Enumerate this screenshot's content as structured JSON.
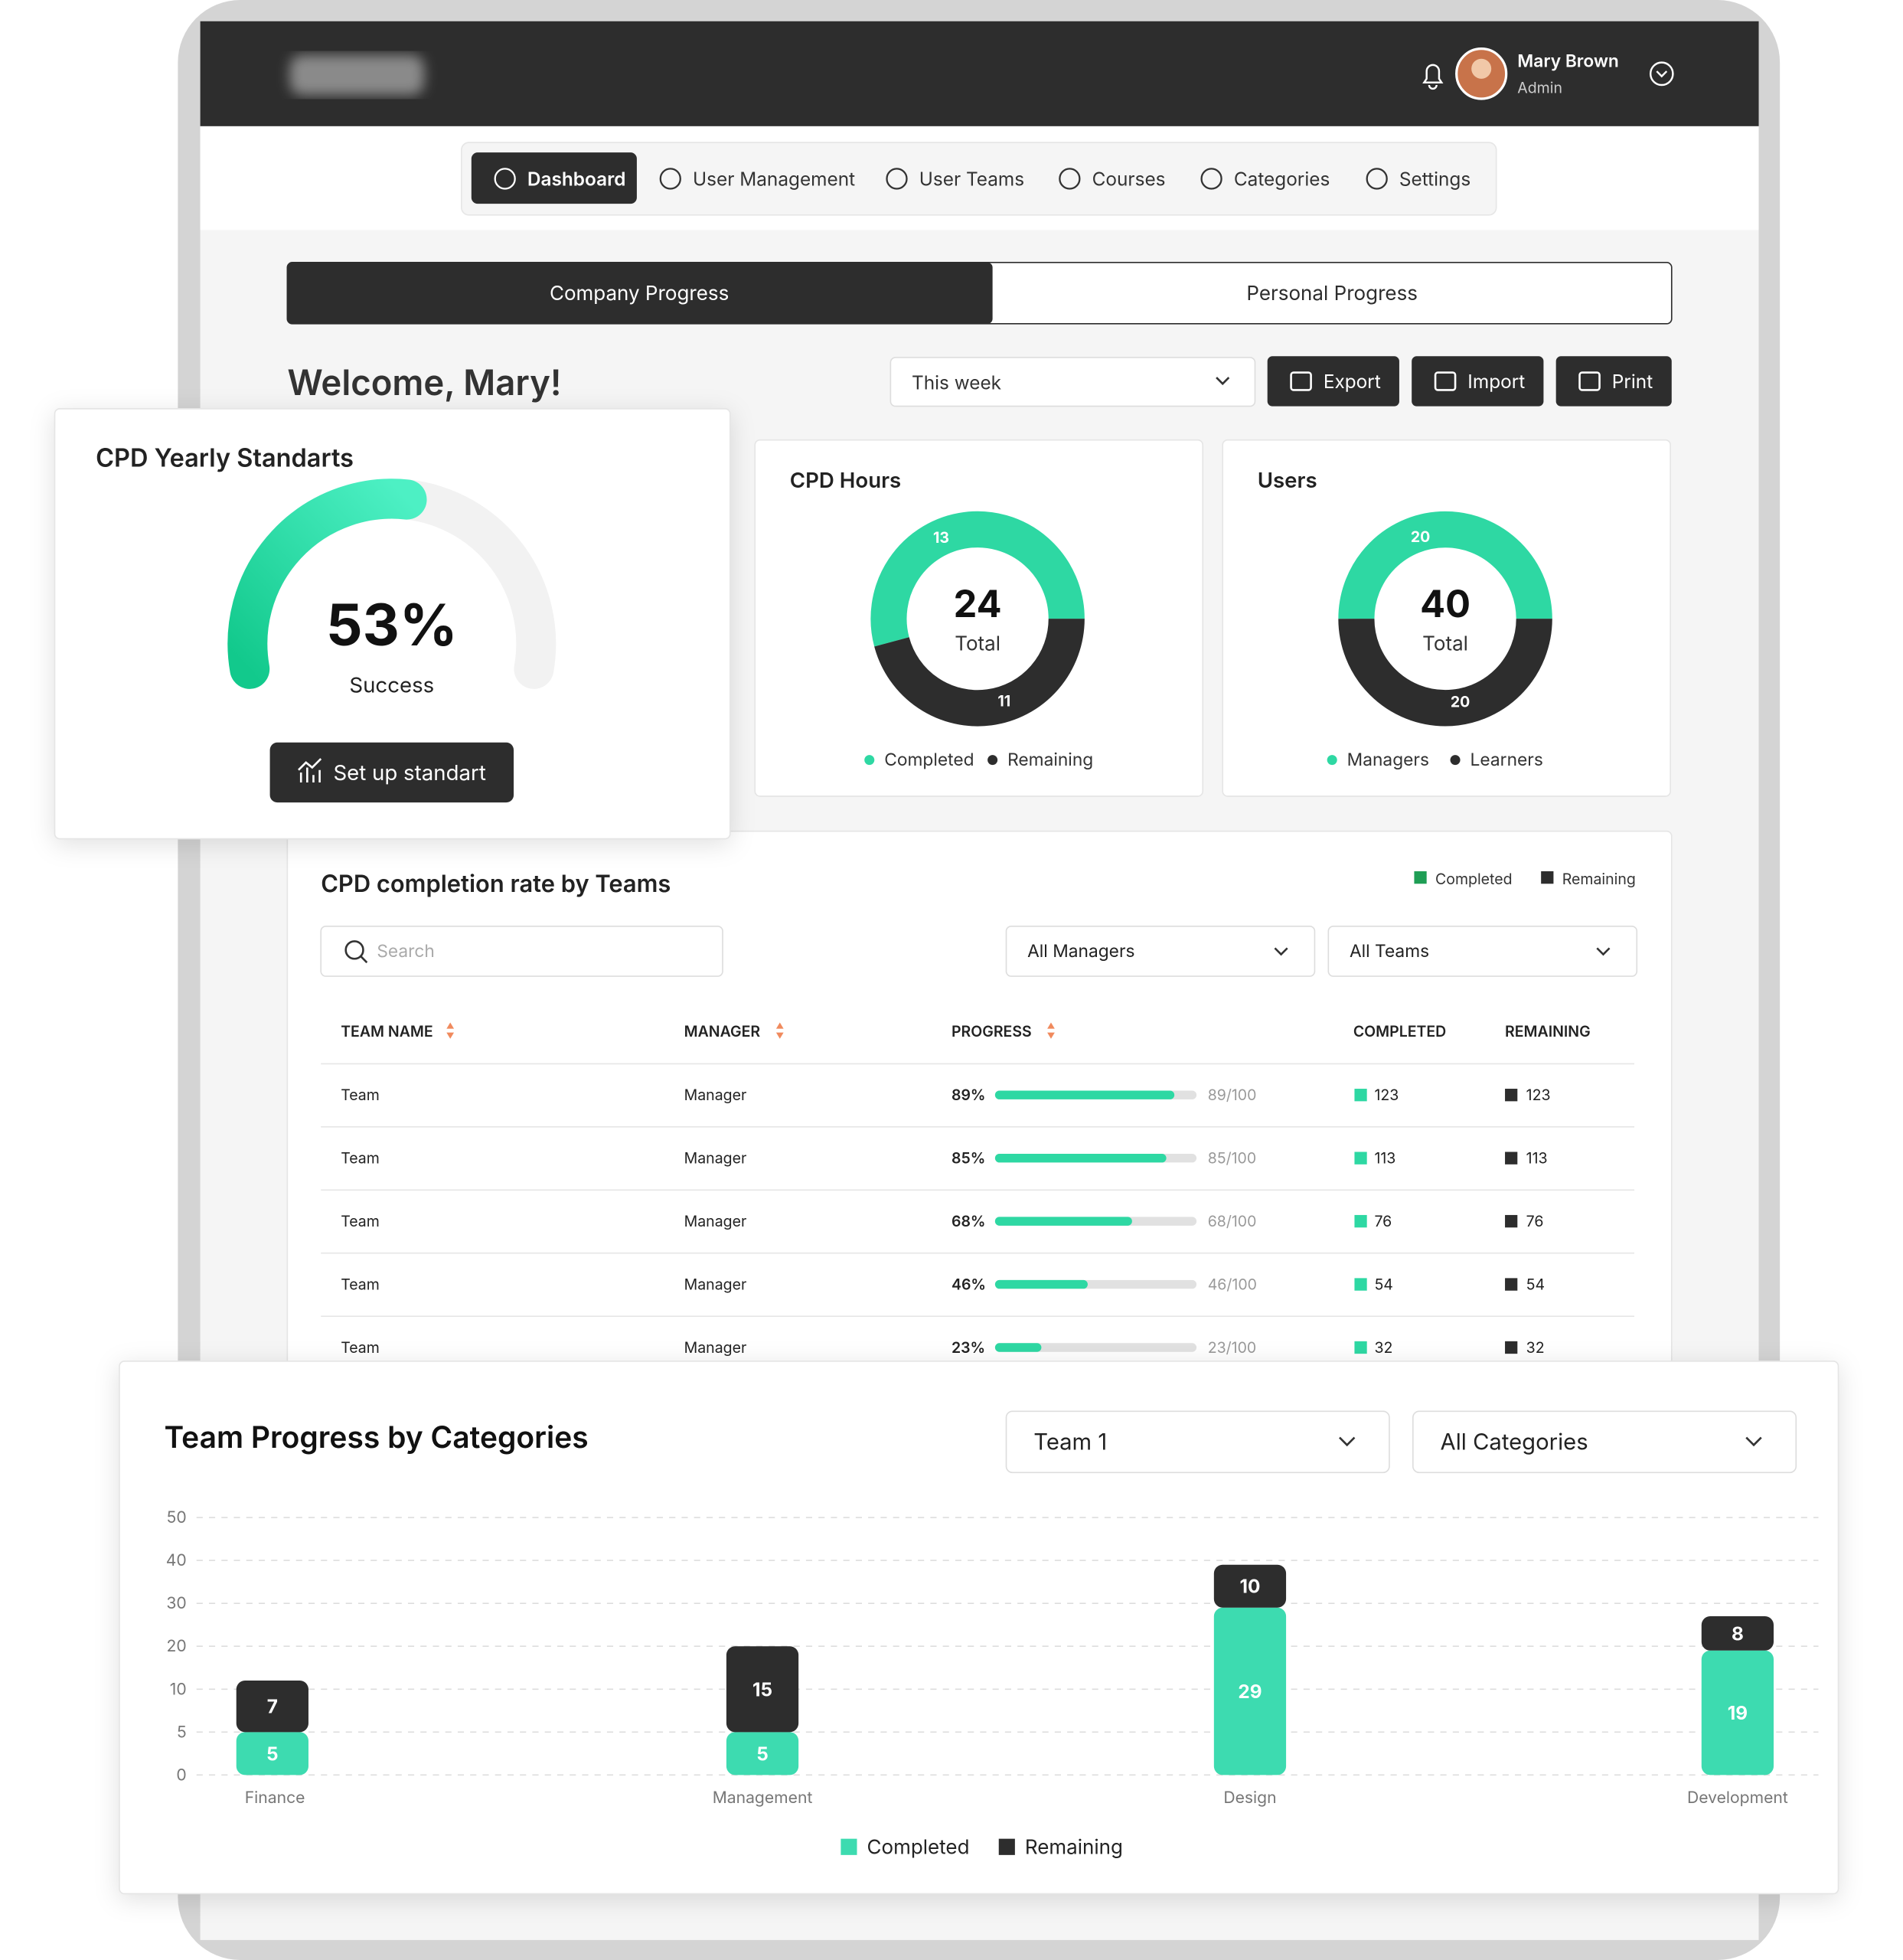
{
  "header": {
    "user_name": "Mary Brown",
    "user_role": "Admin"
  },
  "nav": [
    "Dashboard",
    "User Management",
    "User Teams",
    "Courses",
    "Categories",
    "Settings"
  ],
  "tabs": [
    "Company Progress",
    "Personal Progress"
  ],
  "welcome": "Welcome, Mary!",
  "period": "This week",
  "actions": [
    "Export",
    "Import",
    "Print"
  ],
  "cpd_standards": {
    "title": "CPD Yearly Standarts",
    "value": 53,
    "value_label": "53%",
    "lim": [
      0,
      100
    ],
    "caption": "Success",
    "button": "Set up standart",
    "color": "#2ed8a3"
  },
  "donuts": [
    {
      "title": "CPD Hours",
      "total": 24,
      "total_caption": "Total",
      "series": [
        {
          "name": "Completed",
          "color": "#2ed8a3",
          "value": 13
        },
        {
          "name": "Remaining",
          "color": "#2d2d2d",
          "value": 11
        }
      ]
    },
    {
      "title": "Users",
      "total": 40,
      "total_caption": "Total",
      "series": [
        {
          "name": "Managers",
          "color": "#2ed8a3",
          "value": 20
        },
        {
          "name": "Learners",
          "color": "#2d2d2d",
          "value": 20
        }
      ]
    }
  ],
  "table": {
    "title": "CPD completion rate by Teams",
    "legend": [
      {
        "name": "Completed",
        "color": "#1f9e55"
      },
      {
        "name": "Remaining",
        "color": "#2d2d2d"
      }
    ],
    "search_placeholder": "Search",
    "filters": [
      "All Managers",
      "All Teams"
    ],
    "columns": [
      "TEAM NAME",
      "MANAGER",
      "PROGRESS",
      "COMPLETED",
      "REMAINING"
    ],
    "progress_lim": [
      0,
      100
    ],
    "rows": [
      {
        "team": "Team",
        "manager": "Manager",
        "progress": 89,
        "progress_label": "89%",
        "progress_of": "89/100",
        "completed": 123,
        "remaining": 123
      },
      {
        "team": "Team",
        "manager": "Manager",
        "progress": 85,
        "progress_label": "85%",
        "progress_of": "85/100",
        "completed": 113,
        "remaining": 113
      },
      {
        "team": "Team",
        "manager": "Manager",
        "progress": 68,
        "progress_label": "68%",
        "progress_of": "68/100",
        "completed": 76,
        "remaining": 76
      },
      {
        "team": "Team",
        "manager": "Manager",
        "progress": 46,
        "progress_label": "46%",
        "progress_of": "46/100",
        "completed": 54,
        "remaining": 54
      },
      {
        "team": "Team",
        "manager": "Manager",
        "progress": 23,
        "progress_label": "23%",
        "progress_of": "23/100",
        "completed": 32,
        "remaining": 32
      }
    ]
  },
  "chart_data": {
    "type": "bar",
    "stacked": true,
    "title": "Team Progress by Categories",
    "filters": [
      "Team 1",
      "All Categories"
    ],
    "categories": [
      "Finance",
      "Management",
      "Design",
      "Development"
    ],
    "series": [
      {
        "name": "Completed",
        "color": "#3ddbb0",
        "values": [
          5,
          5,
          29,
          19
        ]
      },
      {
        "name": "Remaining",
        "color": "#2d2d2d",
        "values": [
          7,
          15,
          10,
          8
        ]
      }
    ],
    "ylim": [
      0,
      50
    ],
    "yticks": [
      0,
      5,
      10,
      20,
      30,
      40,
      50
    ],
    "grid": true
  }
}
